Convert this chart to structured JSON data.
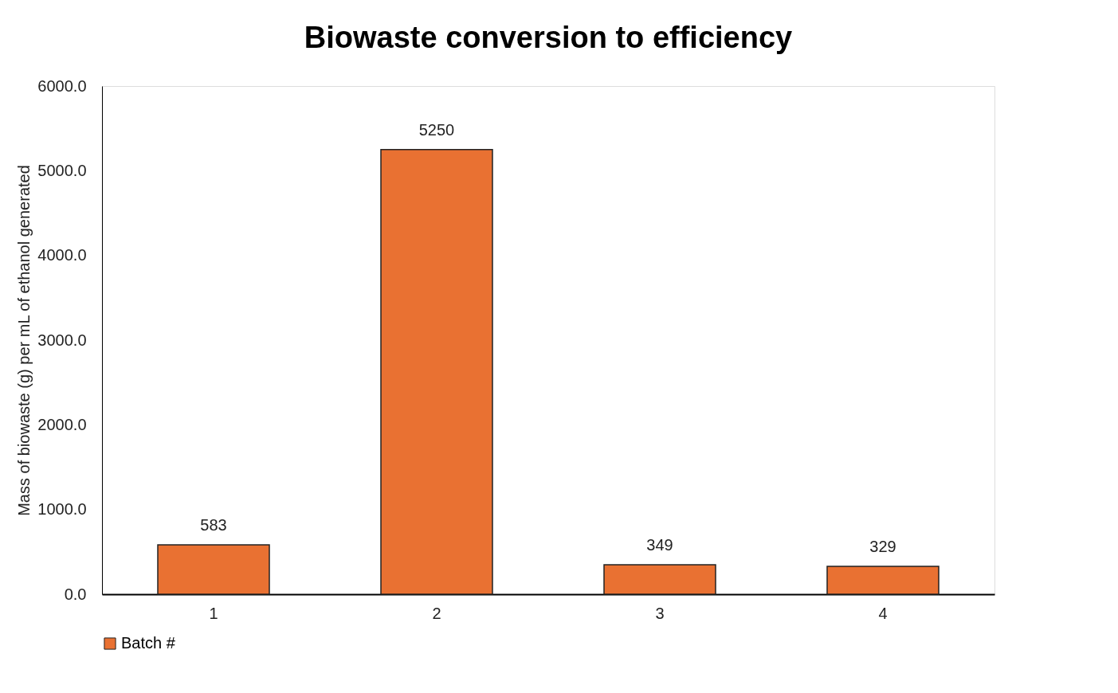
{
  "chart_data": {
    "type": "bar",
    "title": "Biowaste conversion to efficiency",
    "ylabel": "Mass of biowaste (g) per mL of ethanol generated",
    "categories": [
      "1",
      "2",
      "3",
      "4"
    ],
    "series": [
      {
        "name": "Batch #",
        "color": "#e97132",
        "values": [
          583,
          5250,
          349,
          329
        ]
      }
    ],
    "ylim": [
      0,
      6000
    ],
    "yticks": [
      {
        "value": 0,
        "label": "0.0"
      },
      {
        "value": 1000,
        "label": "1000.0"
      },
      {
        "value": 2000,
        "label": "2000.0"
      },
      {
        "value": 3000,
        "label": "3000.0"
      },
      {
        "value": 4000,
        "label": "4000.0"
      },
      {
        "value": 5000,
        "label": "5000.0"
      },
      {
        "value": 6000,
        "label": "6000.0"
      }
    ],
    "data_labels": true,
    "legend": "bottom",
    "grid": false
  }
}
